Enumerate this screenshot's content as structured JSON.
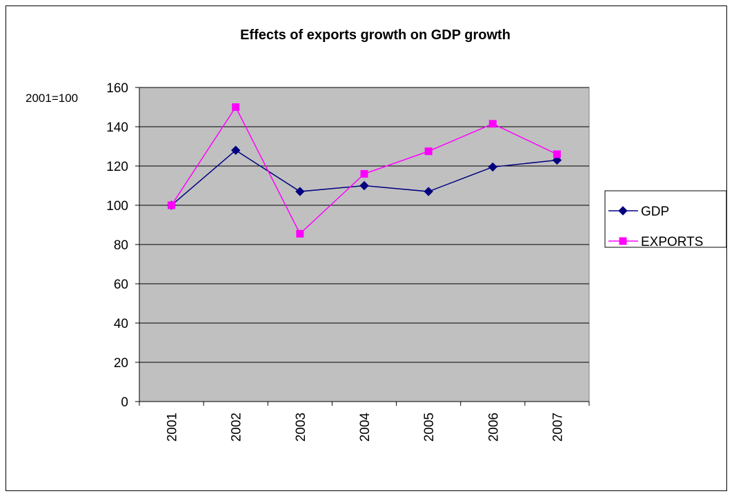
{
  "chart_data": {
    "type": "line",
    "title": "Effects of exports growth on GDP growth",
    "unit_label": "2001=100",
    "xlabel": "",
    "ylabel": "",
    "categories": [
      "2001",
      "2002",
      "2003",
      "2004",
      "2005",
      "2006",
      "2007"
    ],
    "ylim": [
      0,
      160
    ],
    "yticks": [
      0,
      20,
      40,
      60,
      80,
      100,
      120,
      140,
      160
    ],
    "grid": true,
    "plot_background": "#c0c0c0",
    "legend_position": "right",
    "series": [
      {
        "name": "GDP",
        "color": "#000080",
        "marker": "diamond",
        "values": [
          100,
          128,
          107,
          110,
          107,
          119.5,
          123
        ]
      },
      {
        "name": "EXPORTS",
        "color": "#ff00ff",
        "marker": "square",
        "values": [
          100,
          150,
          85.5,
          116,
          127.5,
          141.5,
          126
        ]
      }
    ]
  }
}
